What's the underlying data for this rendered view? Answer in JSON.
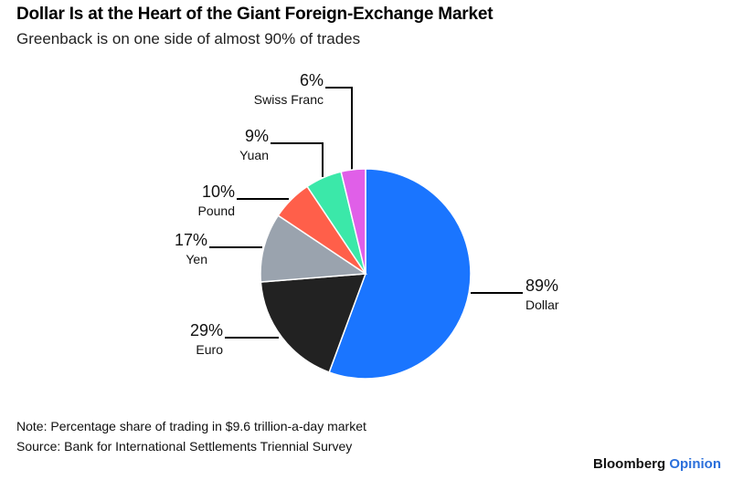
{
  "title": "Dollar Is at the Heart of the Giant Foreign-Exchange Market",
  "subtitle": "Greenback is on one side of almost 90% of trades",
  "note": "Note: Percentage share of trading in $9.6 trillion-a-day market",
  "source": "Source: Bank for International Settlements Triennial Survey",
  "brand": {
    "part1": "Bloomberg",
    "part2": "Opinion"
  },
  "chart_data": {
    "type": "pie",
    "categories": [
      "Dollar",
      "Euro",
      "Yen",
      "Pound",
      "Yuan",
      "Swiss Franc"
    ],
    "values": [
      89,
      29,
      17,
      10,
      9,
      6
    ],
    "labels": [
      "89%",
      "29%",
      "17%",
      "10%",
      "9%",
      "6%"
    ],
    "colors": [
      "#1a75ff",
      "#222222",
      "#9aa3ae",
      "#ff5f4a",
      "#3be8a9",
      "#e05fe8"
    ],
    "start_angle": "12 o'clock",
    "direction": "clockwise"
  }
}
